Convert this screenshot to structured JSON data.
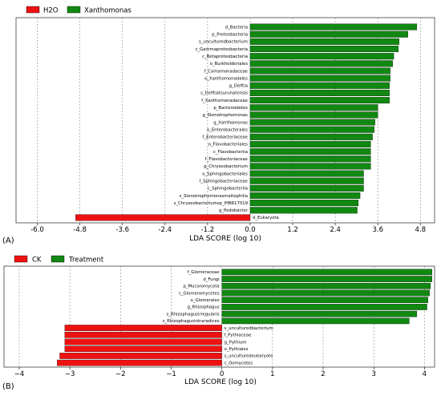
{
  "chart_data": [
    {
      "type": "bar",
      "orientation": "horizontal",
      "panel_label": "(A)",
      "xlabel": "LDA SCORE (log 10)",
      "xlim": [
        -6.6,
        5.2
      ],
      "xticks": [
        "-6.0",
        "-4.8",
        "-3.6",
        "-2.4",
        "-1.2",
        "0.0",
        "1.2",
        "2.4",
        "3.6",
        "4.8"
      ],
      "tick_values": [
        -6.0,
        -4.8,
        -3.6,
        -2.4,
        -1.2,
        0.0,
        1.2,
        2.4,
        3.6,
        4.8
      ],
      "grid": "vertical dashed",
      "legend": [
        {
          "name": "H2O",
          "color": "#ee1111"
        },
        {
          "name": "Xanthomonas",
          "color": "#118811"
        }
      ],
      "bars": [
        {
          "label": "d_Bacteria",
          "value": 4.7,
          "group": "Xanthomonas"
        },
        {
          "label": "p_Proteobacteria",
          "value": 4.45,
          "group": "Xanthomonas"
        },
        {
          "label": "s_unculturedbacterium",
          "value": 4.2,
          "group": "Xanthomonas"
        },
        {
          "label": "c_Gammaproteobacteria",
          "value": 4.18,
          "group": "Xanthomonas"
        },
        {
          "label": "c_Betaproteobacteria",
          "value": 4.05,
          "group": "Xanthomonas"
        },
        {
          "label": "o_Burkholderiales",
          "value": 4.02,
          "group": "Xanthomonas"
        },
        {
          "label": "f_Comamonadaceae",
          "value": 3.95,
          "group": "Xanthomonas"
        },
        {
          "label": "o_Xanthomonadales",
          "value": 3.95,
          "group": "Xanthomonas"
        },
        {
          "label": "g_Delftia",
          "value": 3.93,
          "group": "Xanthomonas"
        },
        {
          "label": "s_Delftiatsuruhatensis",
          "value": 3.93,
          "group": "Xanthomonas"
        },
        {
          "label": "f_Xanthomonadaceae",
          "value": 3.93,
          "group": "Xanthomonas"
        },
        {
          "label": "p_Bacteroidetes",
          "value": 3.6,
          "group": "Xanthomonas"
        },
        {
          "label": "g_Stenotrophomonas",
          "value": 3.6,
          "group": "Xanthomonas"
        },
        {
          "label": "g_Xanthomonas",
          "value": 3.52,
          "group": "Xanthomonas"
        },
        {
          "label": "o_Enterobacterales",
          "value": 3.5,
          "group": "Xanthomonas"
        },
        {
          "label": "f_Enterobacteriaceae",
          "value": 3.45,
          "group": "Xanthomonas"
        },
        {
          "label": "o_Flavobacteriales",
          "value": 3.4,
          "group": "Xanthomonas"
        },
        {
          "label": "c_Flavobacteriia",
          "value": 3.4,
          "group": "Xanthomonas"
        },
        {
          "label": "f_Flavobacteriaceae",
          "value": 3.4,
          "group": "Xanthomonas"
        },
        {
          "label": "g_Chryseobacterium",
          "value": 3.4,
          "group": "Xanthomonas"
        },
        {
          "label": "o_Sphingobacteriales",
          "value": 3.2,
          "group": "Xanthomonas"
        },
        {
          "label": "f_Sphingobacteriaceae",
          "value": 3.2,
          "group": "Xanthomonas"
        },
        {
          "label": "c_Sphingobacteriia",
          "value": 3.2,
          "group": "Xanthomonas"
        },
        {
          "label": "s_Stenotrophomonasmaltophilia",
          "value": 3.1,
          "group": "Xanthomonas"
        },
        {
          "label": "s_Chryseobacteriumsp_IHB817019",
          "value": 3.05,
          "group": "Xanthomonas"
        },
        {
          "label": "g_Pedobacter",
          "value": 3.02,
          "group": "Xanthomonas"
        },
        {
          "label": "d_Eukaryota",
          "value": -4.92,
          "group": "H2O"
        }
      ]
    },
    {
      "type": "bar",
      "orientation": "horizontal",
      "panel_label": "(B)",
      "xlabel": "LDA SCORE (log 10)",
      "xlim": [
        -4.3,
        4.2
      ],
      "xticks": [
        "−4",
        "−3",
        "−2",
        "−1",
        "0",
        "1",
        "2",
        "3",
        "4"
      ],
      "tick_values": [
        -4,
        -3,
        -2,
        -1,
        0,
        1,
        2,
        3,
        4
      ],
      "grid": "vertical dashed",
      "legend": [
        {
          "name": "CK",
          "color": "#ee1111"
        },
        {
          "name": "Treatment",
          "color": "#118811"
        }
      ],
      "bars": [
        {
          "label": "f_Glomeraceae",
          "value": 4.15,
          "group": "Treatment"
        },
        {
          "label": "d_Fungi",
          "value": 4.15,
          "group": "Treatment"
        },
        {
          "label": "p_Mucoromycota",
          "value": 4.12,
          "group": "Treatment"
        },
        {
          "label": "c_Glomeromycetes",
          "value": 4.1,
          "group": "Treatment"
        },
        {
          "label": "o_Glomerales",
          "value": 4.07,
          "group": "Treatment"
        },
        {
          "label": "g_Rhizophagus",
          "value": 4.05,
          "group": "Treatment"
        },
        {
          "label": "s_Rhizophagusirregularis",
          "value": 3.85,
          "group": "Treatment"
        },
        {
          "label": "s_Rhizophagusintraradices",
          "value": 3.7,
          "group": "Treatment"
        },
        {
          "label": "s_unculturedbacterium",
          "value": -3.1,
          "group": "CK"
        },
        {
          "label": "f_Pythiaceae",
          "value": -3.1,
          "group": "CK"
        },
        {
          "label": "g_Pythium",
          "value": -3.1,
          "group": "CK"
        },
        {
          "label": "o_Pythiales",
          "value": -3.1,
          "group": "CK"
        },
        {
          "label": "s_unculturedeukaryote",
          "value": -3.2,
          "group": "CK"
        },
        {
          "label": "c_Oomycetes",
          "value": -3.25,
          "group": "CK"
        }
      ]
    }
  ]
}
